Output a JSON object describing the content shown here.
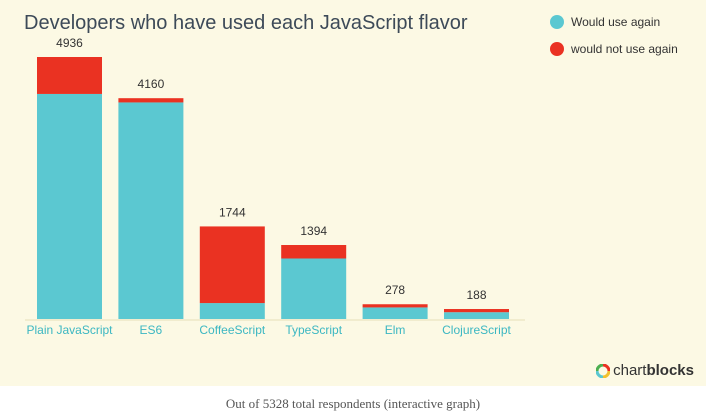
{
  "chart_data": {
    "type": "bar",
    "stacked": true,
    "title": "Developers who have used each JavaScript flavor",
    "categories": [
      "Plain JavaScript",
      "ES6",
      "CoffeeScript",
      "TypeScript",
      "Elm",
      "ClojureScript"
    ],
    "totals": [
      "4936",
      "4160",
      "1744",
      "1394",
      "278",
      "188"
    ],
    "series": [
      {
        "name": "Would use again",
        "color": "#5bc8d1",
        "values": [
          4240,
          4080,
          300,
          1140,
          218,
          128
        ]
      },
      {
        "name": "would not use again",
        "color": "#ea3222",
        "values": [
          696,
          80,
          1444,
          254,
          60,
          60
        ]
      }
    ],
    "ylim": [
      0,
      4936
    ],
    "legend_position": "top-right",
    "grid": false
  },
  "branding": {
    "prefix": "chart",
    "suffix": "blocks"
  },
  "caption": "Out of 5328 total respondents (interactive graph)"
}
